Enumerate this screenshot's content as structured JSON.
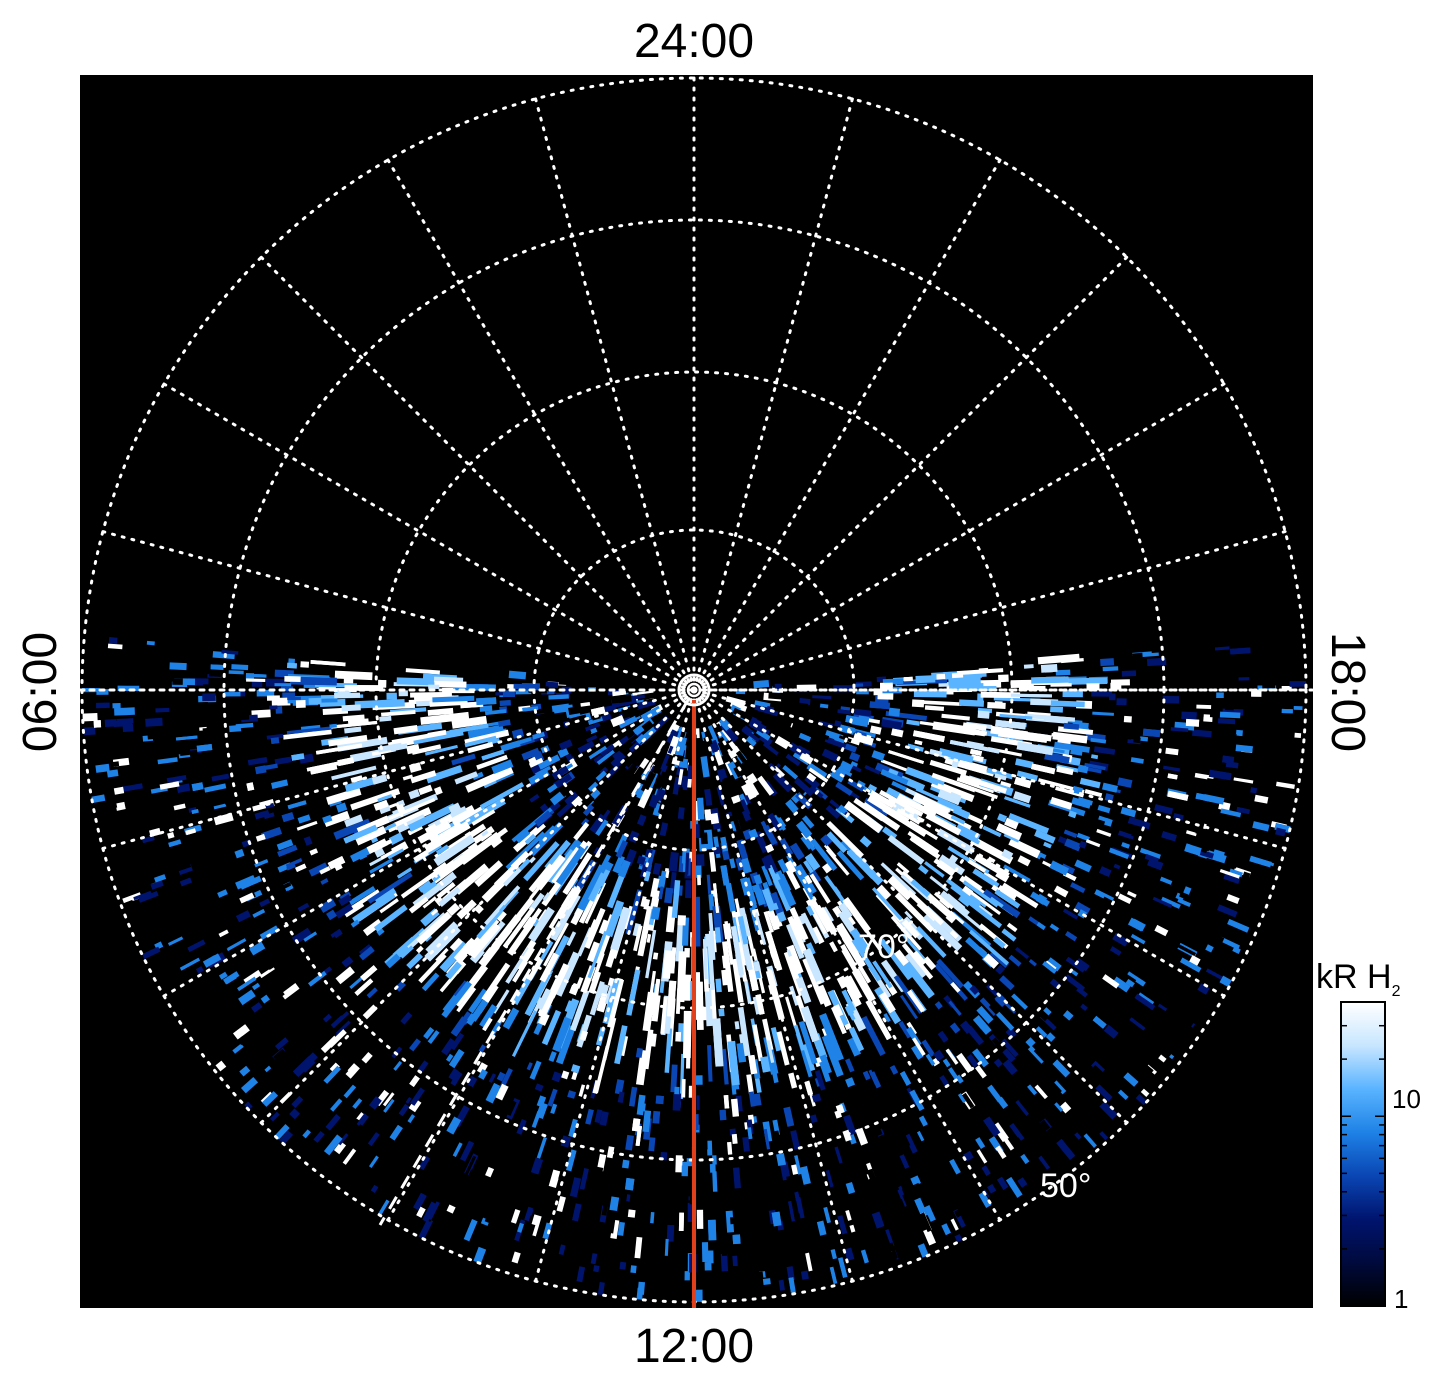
{
  "labels": {
    "top": "24:00",
    "bottom": "12:00",
    "left": "06:00",
    "right": "18:00"
  },
  "latitude_labels": [
    "70°",
    "50°"
  ],
  "colorbar": {
    "title_main": "kR H",
    "title_sub": "2",
    "tick_high": "10",
    "tick_low": "1",
    "stops": [
      "#000000",
      "#000a3c",
      "#00146e",
      "#0a46b4",
      "#1e82e6",
      "#5ab4ff",
      "#c8e6ff",
      "#ffffff"
    ]
  },
  "colors": {
    "background": "#000000",
    "grid": "#ffffff",
    "meridian": "#e0401c"
  }
}
